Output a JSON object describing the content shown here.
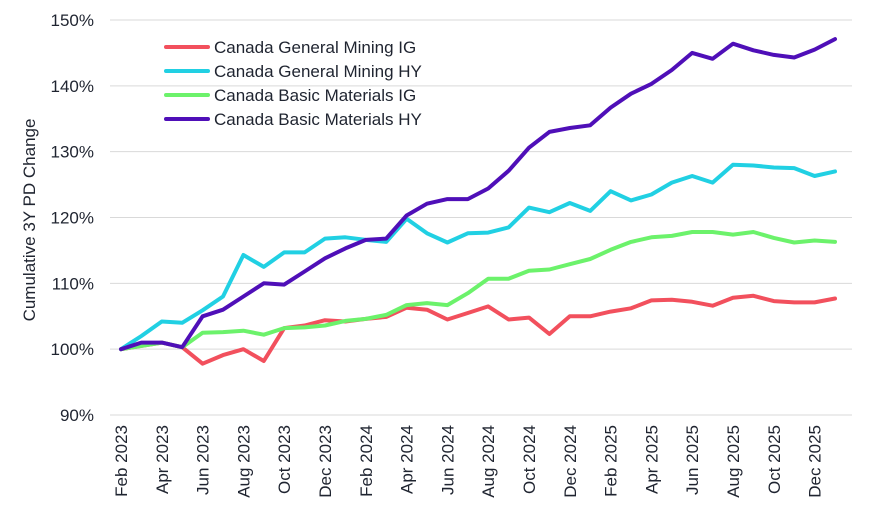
{
  "chart_data": {
    "type": "line",
    "title": "",
    "ylabel": "Cumulative 3Y PD Change",
    "xlabel": "",
    "ylim": [
      90,
      150
    ],
    "y_ticks": [
      90,
      100,
      110,
      120,
      130,
      140,
      150
    ],
    "y_tick_labels": [
      "90%",
      "100%",
      "110%",
      "120%",
      "130%",
      "140%",
      "150%"
    ],
    "x_tick_labels": [
      "Feb 2023",
      "Apr 2023",
      "Jun 2023",
      "Aug 2023",
      "Oct 2023",
      "Dec 2023",
      "Feb 2024",
      "Apr 2024",
      "Jun 2024",
      "Aug 2024",
      "Oct 2024",
      "Dec 2024",
      "Feb 2025",
      "Apr 2025",
      "Jun 2025",
      "Aug 2025",
      "Oct 2025",
      "Dec 2025"
    ],
    "x": [
      "Feb 2023",
      "Mar 2023",
      "Apr 2023",
      "May 2023",
      "Jun 2023",
      "Jul 2023",
      "Aug 2023",
      "Sep 2023",
      "Oct 2023",
      "Nov 2023",
      "Dec 2023",
      "Jan 2024",
      "Feb 2024",
      "Mar 2024",
      "Apr 2024",
      "May 2024",
      "Jun 2024",
      "Jul 2024",
      "Aug 2024",
      "Sep 2024",
      "Oct 2024",
      "Nov 2024",
      "Dec 2024",
      "Jan 2025",
      "Feb 2025",
      "Mar 2025",
      "Apr 2025",
      "May 2025",
      "Jun 2025",
      "Jul 2025",
      "Aug 2025",
      "Sep 2025",
      "Oct 2025",
      "Nov 2025",
      "Dec 2025",
      "Jan 2026"
    ],
    "grid": "horizontal",
    "legend_position": "top-left",
    "series": [
      {
        "name": "Canada General Mining IG",
        "color": "#f2505d",
        "values": [
          100.0,
          100.5,
          101.0,
          100.3,
          97.8,
          99.1,
          100.0,
          98.2,
          103.2,
          103.6,
          104.4,
          104.2,
          104.6,
          104.9,
          106.3,
          106.0,
          104.5,
          105.5,
          106.5,
          104.5,
          104.8,
          102.3,
          105.0,
          105.0,
          105.7,
          106.2,
          107.4,
          107.5,
          107.2,
          106.6,
          107.8,
          108.1,
          107.3,
          107.1,
          107.1,
          107.7
        ]
      },
      {
        "name": "Canada General Mining HY",
        "color": "#21d0e3",
        "values": [
          100.0,
          102.0,
          104.2,
          104.0,
          105.9,
          108.0,
          114.3,
          112.5,
          114.7,
          114.7,
          116.8,
          117.0,
          116.6,
          116.3,
          119.8,
          117.6,
          116.2,
          117.6,
          117.7,
          118.5,
          121.5,
          120.8,
          122.2,
          121.0,
          124.0,
          122.6,
          123.5,
          125.3,
          126.3,
          125.3,
          128.0,
          127.9,
          127.6,
          127.5,
          126.3,
          127.0
        ]
      },
      {
        "name": "Canada Basic Materials IG",
        "color": "#6cf26b",
        "values": [
          100.0,
          100.5,
          101.0,
          100.3,
          102.5,
          102.6,
          102.8,
          102.2,
          103.2,
          103.3,
          103.6,
          104.3,
          104.6,
          105.2,
          106.7,
          107.0,
          106.7,
          108.5,
          110.7,
          110.7,
          111.9,
          112.1,
          112.9,
          113.7,
          115.1,
          116.3,
          117.0,
          117.2,
          117.8,
          117.8,
          117.4,
          117.8,
          116.9,
          116.2,
          116.5,
          116.3
        ]
      },
      {
        "name": "Canada Basic Materials HY",
        "color": "#4f0fb8",
        "values": [
          100.0,
          101.0,
          101.0,
          100.3,
          105.0,
          106.0,
          108.0,
          110.0,
          109.8,
          111.8,
          113.8,
          115.3,
          116.6,
          116.8,
          120.3,
          122.1,
          122.8,
          122.8,
          124.4,
          127.1,
          130.6,
          133.0,
          133.6,
          134.0,
          136.7,
          138.8,
          140.3,
          142.4,
          145.0,
          144.1,
          146.4,
          145.4,
          144.7,
          144.3,
          145.5,
          147.1
        ]
      }
    ]
  }
}
